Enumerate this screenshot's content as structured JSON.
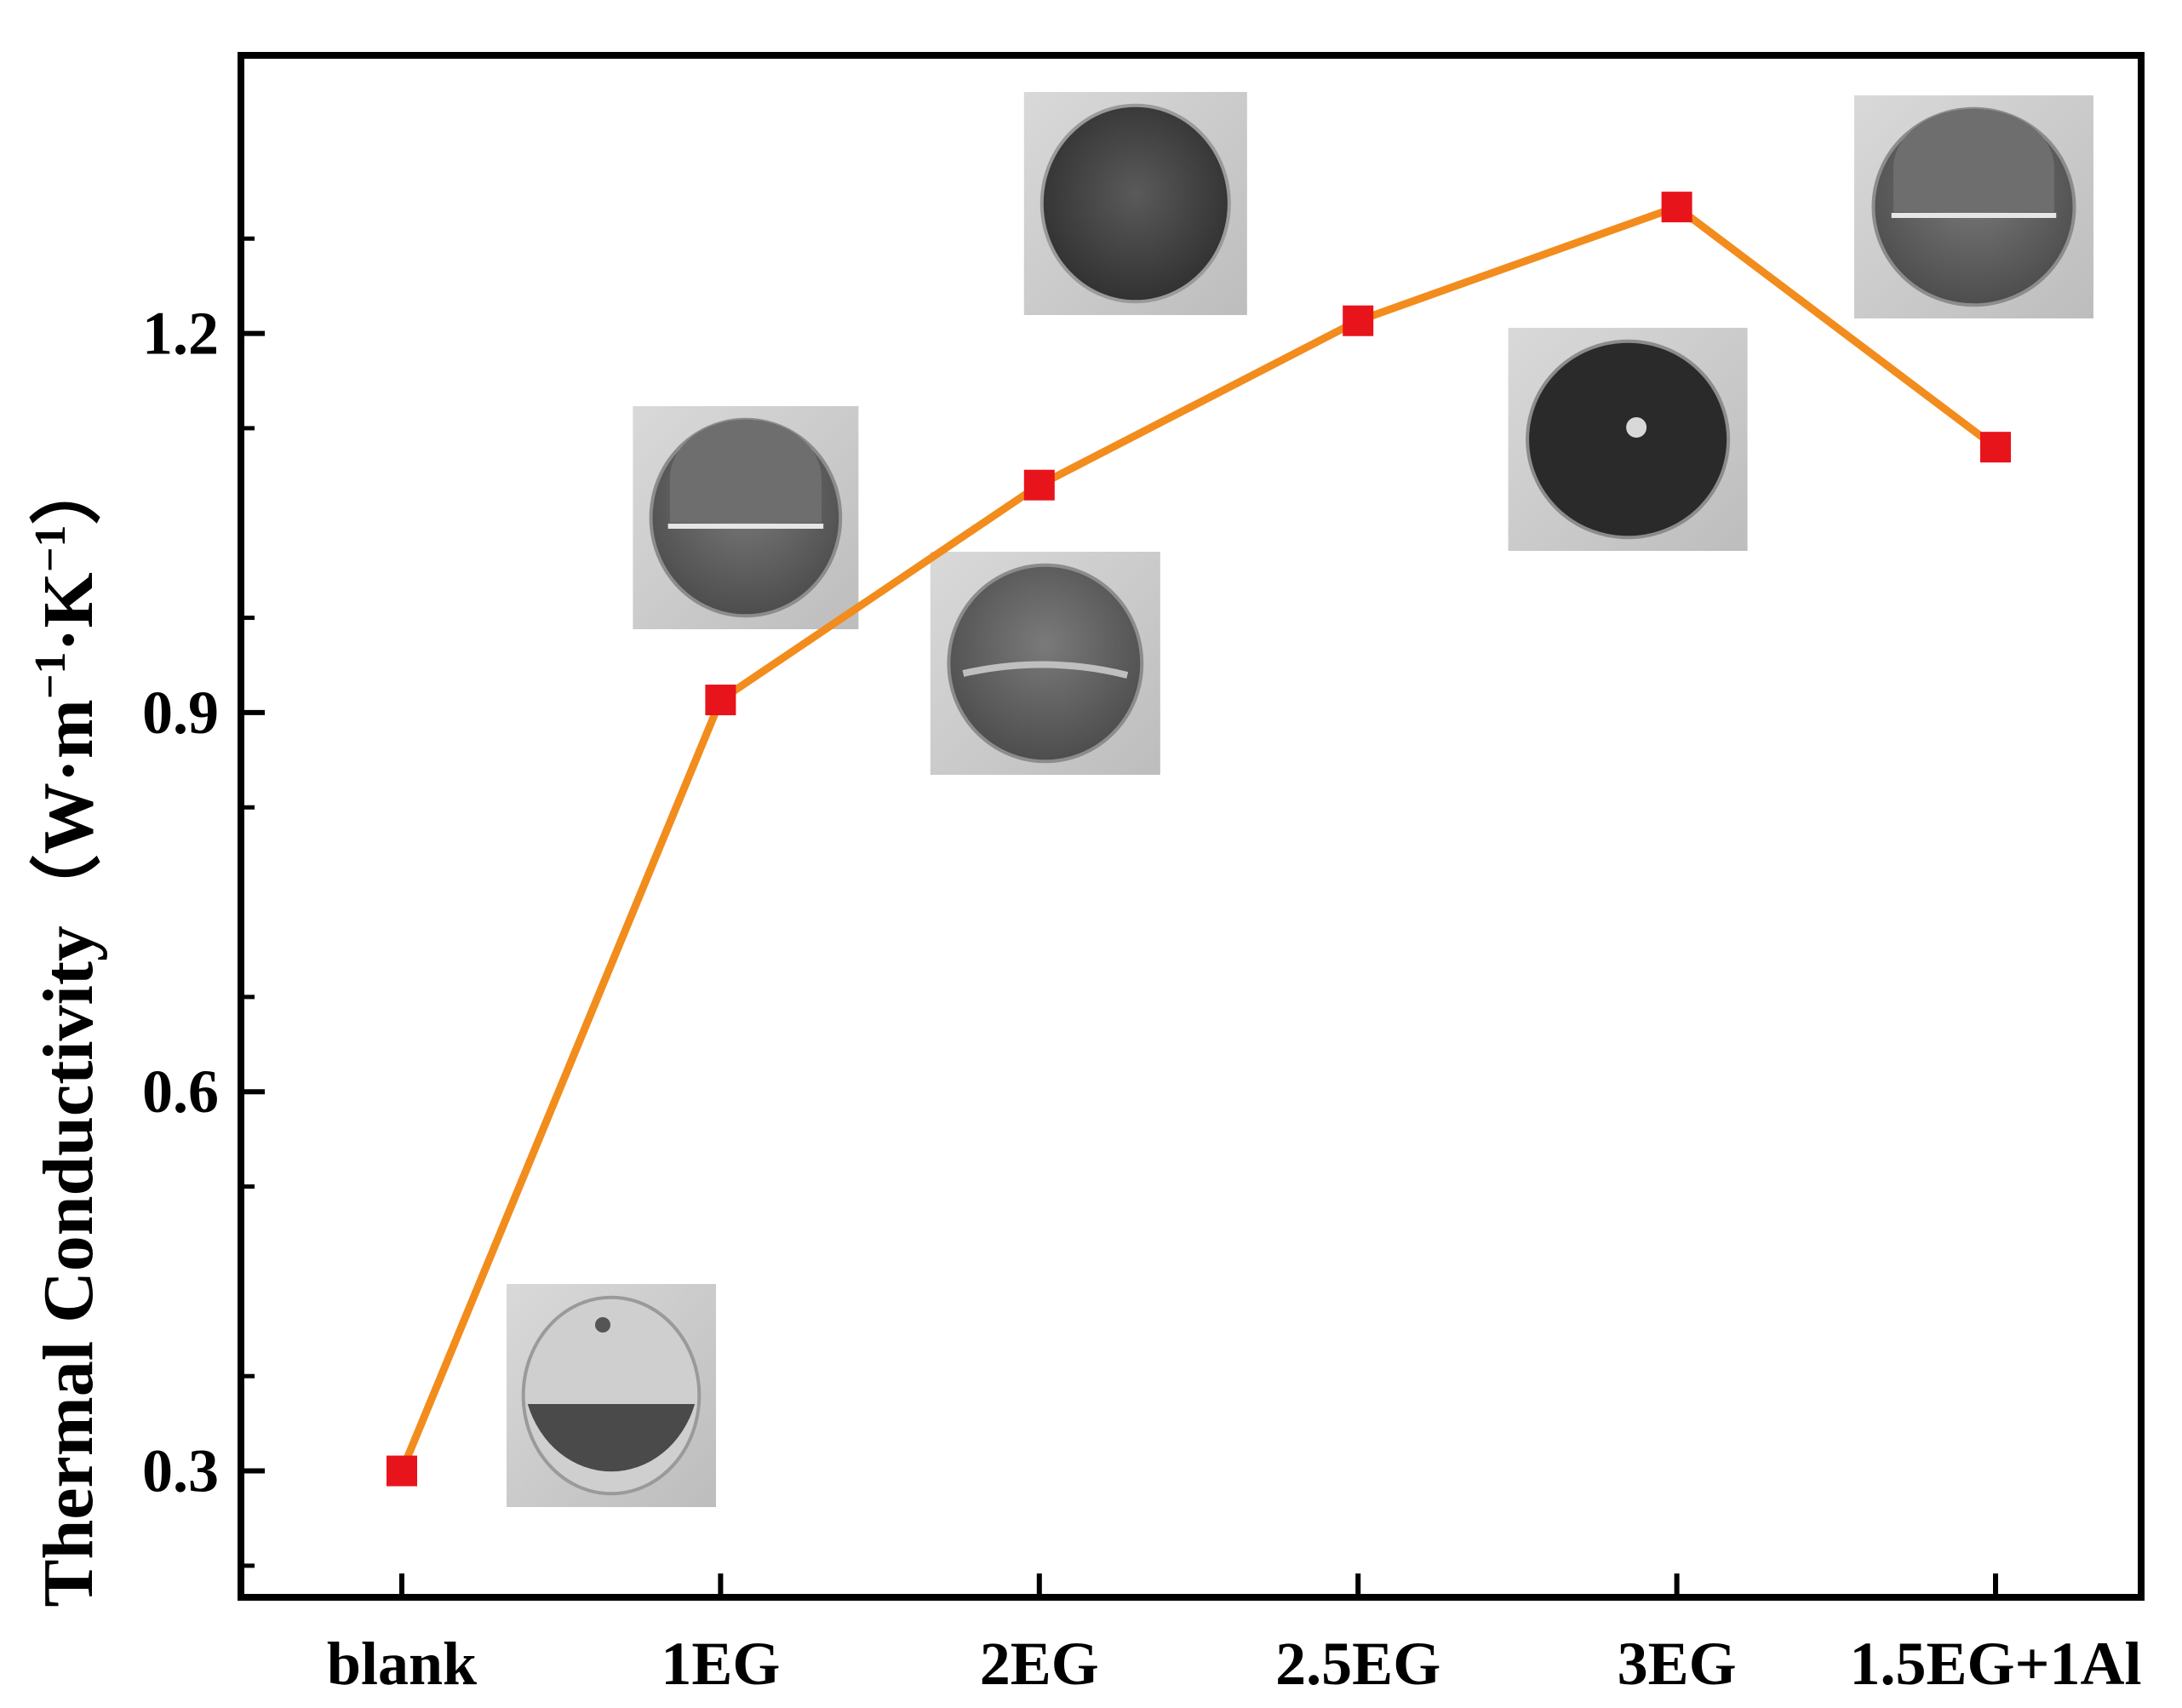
{
  "chart_data": {
    "type": "line",
    "categories": [
      "blank",
      "1EG",
      "2EG",
      "2.5EG",
      "3EG",
      "1.5EG+1Al"
    ],
    "series": [
      {
        "values": [
          0.3,
          0.91,
          1.08,
          1.21,
          1.3,
          1.11
        ]
      }
    ],
    "xlabel": "",
    "ylabel": "Thermal Conductivity",
    "ylabel_unit": {
      "open": "（W·m",
      "exp1": "−1",
      "mid": "·K",
      "exp2": "−1",
      "close": "）"
    },
    "yticks": [
      "0.3",
      "0.6",
      "0.9",
      "1.2"
    ],
    "ylim": [
      0.2,
      1.42
    ],
    "grid": false,
    "legend": "none",
    "line_color": "#F28C1C",
    "marker_color": "#E8141B",
    "marker_shape": "square",
    "inset_photos_per_category": true
  }
}
